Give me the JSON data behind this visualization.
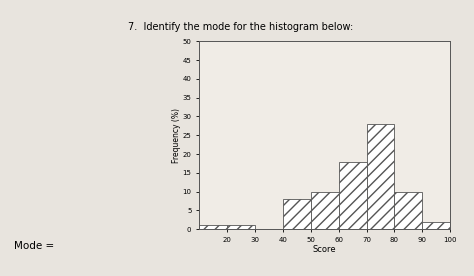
{
  "title": "7.  Identify the mode for the histogram below:",
  "xlabel": "Score",
  "ylabel": "Frequency (%)",
  "bin_edges": [
    10,
    20,
    30,
    40,
    50,
    60,
    70,
    80,
    90,
    100
  ],
  "frequencies": [
    1,
    1,
    0,
    8,
    10,
    18,
    28,
    10,
    2
  ],
  "ylim": [
    0,
    50
  ],
  "yticks": [
    0,
    5,
    10,
    15,
    20,
    25,
    30,
    35,
    40,
    45,
    50
  ],
  "xticks": [
    20,
    30,
    40,
    50,
    60,
    70,
    80,
    90,
    100
  ],
  "bar_facecolor": "white",
  "bar_edgecolor": "#555555",
  "hatch": "///",
  "background_color": "#e8e4de",
  "plot_bg_color": "#f0ece6",
  "fig_width": 4.74,
  "fig_height": 2.76,
  "mode_label": "Mode ="
}
